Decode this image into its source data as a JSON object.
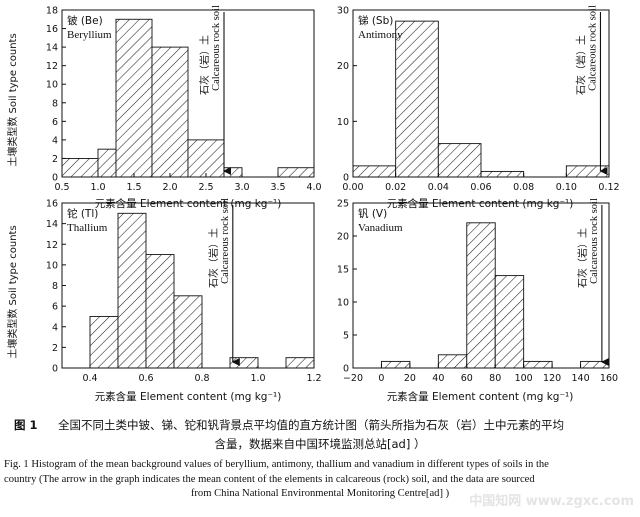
{
  "chart_data": [
    {
      "type": "bar",
      "title": "铍 (Be)",
      "subtitle": "Beryllium",
      "ylabel": "土壤类型数 Soil type counts",
      "xlabel": "",
      "xlim": [
        0.5,
        4.0
      ],
      "ylim": [
        0,
        18
      ],
      "xticks": [
        0.5,
        1.0,
        1.5,
        2.0,
        2.5,
        3.0,
        3.5,
        4.0
      ],
      "xtick_labels": [
        "0.5",
        "1.0",
        "1.5",
        "2.0",
        "2.5",
        "3.0",
        "3.5",
        "4.0"
      ],
      "yticks": [
        0,
        2,
        4,
        6,
        8,
        10,
        12,
        14,
        16,
        18
      ],
      "bins": [
        [
          0.5,
          1.0
        ],
        [
          1.0,
          1.25
        ],
        [
          1.25,
          1.75
        ],
        [
          1.75,
          2.25
        ],
        [
          2.25,
          2.75
        ],
        [
          2.75,
          3.0
        ],
        [
          3.5,
          4.0
        ]
      ],
      "values": [
        2,
        3,
        17,
        14,
        4,
        1,
        1
      ],
      "arrow_x": 2.75,
      "annotation": "石灰（岩）土 Calcareous rock soil"
    },
    {
      "type": "bar",
      "title": "锑 (Sb)",
      "subtitle": "Antimony",
      "ylabel": "",
      "xlabel": "",
      "xlim": [
        0.0,
        0.12
      ],
      "ylim": [
        0,
        30
      ],
      "xticks": [
        0.0,
        0.02,
        0.04,
        0.06,
        0.08,
        0.1,
        0.12
      ],
      "xtick_labels": [
        "0.00",
        "0.02",
        "0.04",
        "0.06",
        "0.08",
        "0.10",
        "0.12"
      ],
      "yticks": [
        0,
        10,
        20,
        30
      ],
      "bins": [
        [
          0.0,
          0.02
        ],
        [
          0.02,
          0.04
        ],
        [
          0.04,
          0.06
        ],
        [
          0.06,
          0.08
        ],
        [
          0.1,
          0.12
        ]
      ],
      "values": [
        2,
        28,
        6,
        1,
        2
      ],
      "arrow_x": 0.116,
      "annotation": "石灰（岩）土 Calcareous rock soil"
    },
    {
      "type": "bar",
      "title": "铊 (Tl)",
      "subtitle": "Thallium",
      "ylabel": "土壤类型数 Soil type counts",
      "xlabel": "元素含量 Element content (mg kg⁻¹)",
      "xlim": [
        0.3,
        1.2
      ],
      "ylim": [
        0,
        16
      ],
      "xticks": [
        0.4,
        0.6,
        0.8,
        1.0,
        1.2
      ],
      "xtick_labels": [
        "0.4",
        "0.6",
        "0.8",
        "1.0",
        "1.2"
      ],
      "yticks": [
        0,
        2,
        4,
        6,
        8,
        10,
        12,
        14,
        16
      ],
      "bins": [
        [
          0.4,
          0.5
        ],
        [
          0.5,
          0.6
        ],
        [
          0.6,
          0.7
        ],
        [
          0.7,
          0.8
        ],
        [
          0.9,
          1.0
        ],
        [
          1.1,
          1.2
        ]
      ],
      "values": [
        5,
        15,
        11,
        7,
        1,
        1
      ],
      "arrow_x": 0.91,
      "annotation": "石灰（岩）土 Calcareous rock soil"
    },
    {
      "type": "bar",
      "title": "钒 (V)",
      "subtitle": "Vanadium",
      "ylabel": "",
      "xlabel": "元素含量 Element content (mg kg⁻¹)",
      "xlim": [
        -20,
        160
      ],
      "ylim": [
        0,
        25
      ],
      "xticks": [
        -20,
        0,
        20,
        40,
        60,
        80,
        100,
        120,
        140,
        160
      ],
      "xtick_labels": [
        "−20",
        "0",
        "20",
        "40",
        "60",
        "80",
        "100",
        "120",
        "140",
        "160"
      ],
      "yticks": [
        0,
        5,
        10,
        15,
        20,
        25
      ],
      "bins": [
        [
          0,
          20
        ],
        [
          40,
          60
        ],
        [
          60,
          80
        ],
        [
          80,
          100
        ],
        [
          100,
          120
        ],
        [
          140,
          160
        ]
      ],
      "values": [
        1,
        2,
        22,
        14,
        1,
        1
      ],
      "arrow_x": 155,
      "annotation": "石灰（岩）土 Calcareous rock soil"
    }
  ],
  "caption": {
    "cn_label": "图 1",
    "cn_line1": "全国不同土类中铍、锑、铊和钒背景点平均值的直方统计图（箭头所指为石灰（岩）土中元素的平均",
    "cn_line2": "含量，数据来自中国环境监测总站[ad] ）",
    "en_line1": "Fig. 1    Histogram of the mean background values of beryllium, antimony, thallium and vanadium in different types of soils in the",
    "en_line2": "country (The arrow in the graph indicates the mean content of the elements in calcareous (rock) soil, and the data are sourced",
    "en_line3": "from China National Environmental Monitoring Centre[ad] )"
  },
  "watermark": "中国知网 www.zgxc.com"
}
